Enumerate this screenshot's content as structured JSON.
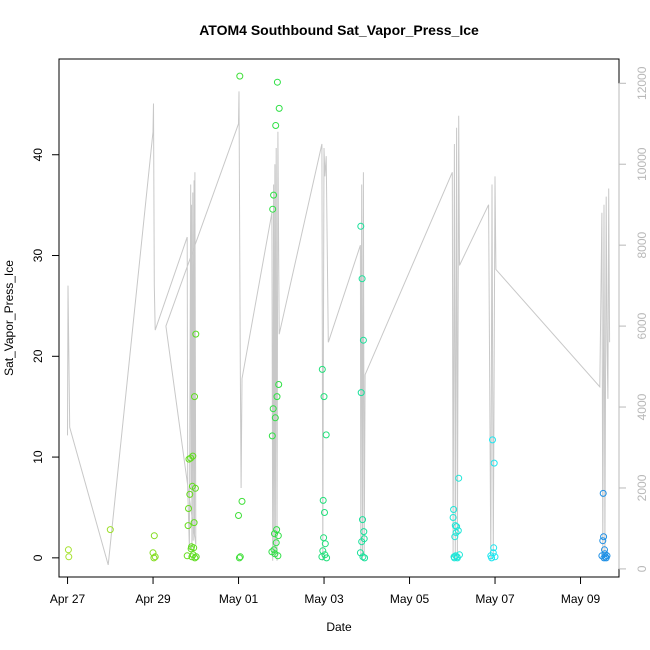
{
  "chart_data": {
    "type": "scatter",
    "title": "ATOM4 Southbound Sat_Vapor_Press_Ice",
    "xlabel": "Date",
    "ylabel": "Sat_Vapor_Press_Ice",
    "x_ticks": [
      "Apr 27",
      "Apr 29",
      "May 01",
      "May 03",
      "May 05",
      "May 07",
      "May 09"
    ],
    "y_ticks": [
      "0",
      "10",
      "20",
      "30",
      "40"
    ],
    "y2_ticks": [
      "0",
      "2000",
      "4000",
      "6000",
      "8000",
      "10000",
      "12000"
    ],
    "xlim_days": [
      26.8,
      39.9
    ],
    "ylim": [
      -1.9,
      49.5
    ],
    "y2lim": [
      -200,
      12600
    ],
    "grid": false,
    "colors": {
      "axis": "#000000",
      "secondary_axis": "#b8b8b8",
      "altitude_line": "#c8c8c8"
    },
    "points": [
      {
        "x": 27.02,
        "y": 0.8,
        "color": "#a6e22e"
      },
      {
        "x": 27.03,
        "y": 0.1,
        "color": "#a6e22e"
      },
      {
        "x": 28.0,
        "y": 2.8,
        "color": "#9de02a"
      },
      {
        "x": 29.0,
        "y": 0.5,
        "color": "#84dd20"
      },
      {
        "x": 29.02,
        "y": 0.0,
        "color": "#84dd20"
      },
      {
        "x": 29.05,
        "y": 0.1,
        "color": "#84dd20"
      },
      {
        "x": 29.03,
        "y": 2.2,
        "color": "#84dd20"
      },
      {
        "x": 29.8,
        "y": 0.2,
        "color": "#66dd1c"
      },
      {
        "x": 29.82,
        "y": 3.2,
        "color": "#66dd1c"
      },
      {
        "x": 29.83,
        "y": 4.9,
        "color": "#66dd1c"
      },
      {
        "x": 29.84,
        "y": 9.8,
        "color": "#66dd1c"
      },
      {
        "x": 29.86,
        "y": 6.3,
        "color": "#66dd1c"
      },
      {
        "x": 29.88,
        "y": 9.9,
        "color": "#5fdc1e"
      },
      {
        "x": 29.89,
        "y": 0.9,
        "color": "#5fdc1e"
      },
      {
        "x": 29.9,
        "y": 1.1,
        "color": "#5fdc1e"
      },
      {
        "x": 29.91,
        "y": 0.1,
        "color": "#5fdc1e"
      },
      {
        "x": 29.92,
        "y": 7.1,
        "color": "#5fdc1e"
      },
      {
        "x": 29.93,
        "y": 10.1,
        "color": "#5fdc1e"
      },
      {
        "x": 29.94,
        "y": 0.3,
        "color": "#5fdc1e"
      },
      {
        "x": 29.95,
        "y": 1.0,
        "color": "#5fdc1e"
      },
      {
        "x": 29.96,
        "y": 3.5,
        "color": "#5fdc1e"
      },
      {
        "x": 29.97,
        "y": 16.0,
        "color": "#5fdc1e"
      },
      {
        "x": 29.98,
        "y": 0.0,
        "color": "#5fdc1e"
      },
      {
        "x": 29.99,
        "y": 6.9,
        "color": "#5fdc1e"
      },
      {
        "x": 30.0,
        "y": 22.2,
        "color": "#58dc22"
      },
      {
        "x": 30.01,
        "y": 0.1,
        "color": "#58dc22"
      },
      {
        "x": 31.0,
        "y": 4.2,
        "color": "#3fdf38"
      },
      {
        "x": 31.02,
        "y": 0.0,
        "color": "#3fdf38"
      },
      {
        "x": 31.04,
        "y": 0.1,
        "color": "#3fdf38"
      },
      {
        "x": 31.03,
        "y": 47.8,
        "color": "#3fdf38"
      },
      {
        "x": 31.08,
        "y": 5.6,
        "color": "#3fdf38"
      },
      {
        "x": 31.78,
        "y": 0.6,
        "color": "#2fe045"
      },
      {
        "x": 31.79,
        "y": 12.1,
        "color": "#2fe045"
      },
      {
        "x": 31.8,
        "y": 34.6,
        "color": "#2fe045"
      },
      {
        "x": 31.81,
        "y": 14.8,
        "color": "#2fe045"
      },
      {
        "x": 31.82,
        "y": 36.0,
        "color": "#2fe045"
      },
      {
        "x": 31.83,
        "y": 0.8,
        "color": "#2fe045"
      },
      {
        "x": 31.84,
        "y": 2.4,
        "color": "#2fe045"
      },
      {
        "x": 31.85,
        "y": 0.4,
        "color": "#2fe045"
      },
      {
        "x": 31.86,
        "y": 13.9,
        "color": "#2fe045"
      },
      {
        "x": 31.87,
        "y": 42.9,
        "color": "#2fe045"
      },
      {
        "x": 31.88,
        "y": 1.5,
        "color": "#2fe045"
      },
      {
        "x": 31.89,
        "y": 2.8,
        "color": "#2fe045"
      },
      {
        "x": 31.9,
        "y": 16.0,
        "color": "#2fe045"
      },
      {
        "x": 31.91,
        "y": 47.2,
        "color": "#2fe045"
      },
      {
        "x": 31.92,
        "y": 0.2,
        "color": "#2fe045"
      },
      {
        "x": 31.93,
        "y": 2.2,
        "color": "#2fe045"
      },
      {
        "x": 31.94,
        "y": 17.2,
        "color": "#2fe045"
      },
      {
        "x": 31.95,
        "y": 44.6,
        "color": "#2fe045"
      },
      {
        "x": 32.95,
        "y": 0.1,
        "color": "#20e07a"
      },
      {
        "x": 32.96,
        "y": 18.7,
        "color": "#20e07a"
      },
      {
        "x": 32.97,
        "y": 0.7,
        "color": "#20e07a"
      },
      {
        "x": 32.98,
        "y": 5.7,
        "color": "#20e07a"
      },
      {
        "x": 32.99,
        "y": 2.0,
        "color": "#20e07a"
      },
      {
        "x": 33.0,
        "y": 16.0,
        "color": "#20e07a"
      },
      {
        "x": 33.01,
        "y": 4.5,
        "color": "#20e07a"
      },
      {
        "x": 33.02,
        "y": 0.3,
        "color": "#20e07a"
      },
      {
        "x": 33.03,
        "y": 1.4,
        "color": "#20e07a"
      },
      {
        "x": 33.05,
        "y": 12.2,
        "color": "#20e07a"
      },
      {
        "x": 33.06,
        "y": 0.0,
        "color": "#20e07a"
      },
      {
        "x": 33.85,
        "y": 0.5,
        "color": "#18e09a"
      },
      {
        "x": 33.86,
        "y": 32.9,
        "color": "#18e09a"
      },
      {
        "x": 33.87,
        "y": 16.4,
        "color": "#18e09a"
      },
      {
        "x": 33.88,
        "y": 1.6,
        "color": "#18e09a"
      },
      {
        "x": 33.89,
        "y": 27.7,
        "color": "#18e09a"
      },
      {
        "x": 33.9,
        "y": 3.8,
        "color": "#18e09a"
      },
      {
        "x": 33.91,
        "y": 0.1,
        "color": "#18e09a"
      },
      {
        "x": 33.92,
        "y": 21.6,
        "color": "#18e09a"
      },
      {
        "x": 33.93,
        "y": 2.6,
        "color": "#18e09a"
      },
      {
        "x": 33.94,
        "y": 1.9,
        "color": "#18e09a"
      },
      {
        "x": 33.95,
        "y": 0.0,
        "color": "#18e09a"
      },
      {
        "x": 36.02,
        "y": 4.0,
        "color": "#1fe6d8"
      },
      {
        "x": 36.03,
        "y": 4.8,
        "color": "#1fe6d8"
      },
      {
        "x": 36.04,
        "y": 0.1,
        "color": "#1fe6d8"
      },
      {
        "x": 36.05,
        "y": 0.0,
        "color": "#1fe6d8"
      },
      {
        "x": 36.06,
        "y": 2.1,
        "color": "#1fe6d8"
      },
      {
        "x": 36.07,
        "y": 3.2,
        "color": "#1fe6d8"
      },
      {
        "x": 36.08,
        "y": 0.2,
        "color": "#1fe6d8"
      },
      {
        "x": 36.09,
        "y": 2.5,
        "color": "#1fe6d8"
      },
      {
        "x": 36.1,
        "y": 3.1,
        "color": "#1fe6d8"
      },
      {
        "x": 36.11,
        "y": 0.1,
        "color": "#1fe6d8"
      },
      {
        "x": 36.12,
        "y": 0.0,
        "color": "#1fe6d8"
      },
      {
        "x": 36.14,
        "y": 2.7,
        "color": "#1fe6d8"
      },
      {
        "x": 36.15,
        "y": 7.9,
        "color": "#1fe6d8"
      },
      {
        "x": 36.17,
        "y": 0.3,
        "color": "#1fe6d8"
      },
      {
        "x": 36.9,
        "y": 0.2,
        "color": "#1ee6f0"
      },
      {
        "x": 36.92,
        "y": 0.0,
        "color": "#1ee6f0"
      },
      {
        "x": 36.94,
        "y": 11.7,
        "color": "#1ee6f0"
      },
      {
        "x": 36.96,
        "y": 0.5,
        "color": "#1ee6f0"
      },
      {
        "x": 36.97,
        "y": 1.0,
        "color": "#1ee6f0"
      },
      {
        "x": 36.98,
        "y": 9.4,
        "color": "#1ee6f0"
      },
      {
        "x": 37.0,
        "y": 0.1,
        "color": "#1ee6f0"
      },
      {
        "x": 39.5,
        "y": 0.2,
        "color": "#1e90e6"
      },
      {
        "x": 39.52,
        "y": 1.7,
        "color": "#1e90e6"
      },
      {
        "x": 39.53,
        "y": 6.4,
        "color": "#1e90e6"
      },
      {
        "x": 39.54,
        "y": 2.1,
        "color": "#1e90e6"
      },
      {
        "x": 39.55,
        "y": 0.0,
        "color": "#1e90e6"
      },
      {
        "x": 39.56,
        "y": 0.8,
        "color": "#1e90e6"
      },
      {
        "x": 39.57,
        "y": 0.4,
        "color": "#1e90e6"
      },
      {
        "x": 39.58,
        "y": 0.1,
        "color": "#1e90e6"
      },
      {
        "x": 39.6,
        "y": 0.0,
        "color": "#1e90e6"
      },
      {
        "x": 39.62,
        "y": 0.2,
        "color": "#1e90e6"
      }
    ],
    "altitude_line": [
      [
        27.0,
        3300
      ],
      [
        27.01,
        7000
      ],
      [
        27.05,
        3500
      ],
      [
        27.95,
        100
      ],
      [
        29.0,
        10800
      ],
      [
        29.01,
        11500
      ],
      [
        29.03,
        7000
      ],
      [
        29.05,
        5900
      ],
      [
        29.8,
        8200
      ],
      [
        29.81,
        2000
      ],
      [
        29.85,
        500
      ],
      [
        29.88,
        9500
      ],
      [
        29.89,
        2000
      ],
      [
        29.9,
        9000
      ],
      [
        29.91,
        500
      ],
      [
        29.93,
        9300
      ],
      [
        29.94,
        700
      ],
      [
        29.96,
        9600
      ],
      [
        29.97,
        800
      ],
      [
        29.98,
        9800
      ],
      [
        30.0,
        600
      ],
      [
        29.3,
        6000
      ],
      [
        31.0,
        11000
      ],
      [
        31.01,
        11800
      ],
      [
        31.04,
        5000
      ],
      [
        31.06,
        2000
      ],
      [
        31.08,
        4700
      ],
      [
        31.78,
        8800
      ],
      [
        31.8,
        200
      ],
      [
        31.82,
        9500
      ],
      [
        31.83,
        300
      ],
      [
        31.85,
        10000
      ],
      [
        31.86,
        400
      ],
      [
        31.88,
        10400
      ],
      [
        31.9,
        200
      ],
      [
        31.92,
        10800
      ],
      [
        31.95,
        5800
      ],
      [
        32.95,
        10500
      ],
      [
        32.97,
        200
      ],
      [
        33.0,
        10400
      ],
      [
        33.02,
        9700
      ],
      [
        33.05,
        10200
      ],
      [
        33.1,
        5600
      ],
      [
        33.85,
        8000
      ],
      [
        33.86,
        300
      ],
      [
        33.88,
        9500
      ],
      [
        33.9,
        200
      ],
      [
        33.92,
        9800
      ],
      [
        33.94,
        300
      ],
      [
        33.96,
        4800
      ],
      [
        36.0,
        9800
      ],
      [
        36.02,
        300
      ],
      [
        36.05,
        10500
      ],
      [
        36.07,
        200
      ],
      [
        36.1,
        10900
      ],
      [
        36.12,
        300
      ],
      [
        36.15,
        11200
      ],
      [
        36.17,
        7500
      ],
      [
        36.85,
        9000
      ],
      [
        36.9,
        200
      ],
      [
        36.93,
        9500
      ],
      [
        36.96,
        300
      ],
      [
        37.0,
        9700
      ],
      [
        37.02,
        7400
      ],
      [
        39.45,
        4500
      ],
      [
        39.5,
        8800
      ],
      [
        39.52,
        200
      ],
      [
        39.55,
        9000
      ],
      [
        39.57,
        300
      ],
      [
        39.6,
        9200
      ],
      [
        39.62,
        5700
      ],
      [
        39.64,
        4200
      ],
      [
        39.66,
        9400
      ],
      [
        39.68,
        5600
      ]
    ]
  }
}
